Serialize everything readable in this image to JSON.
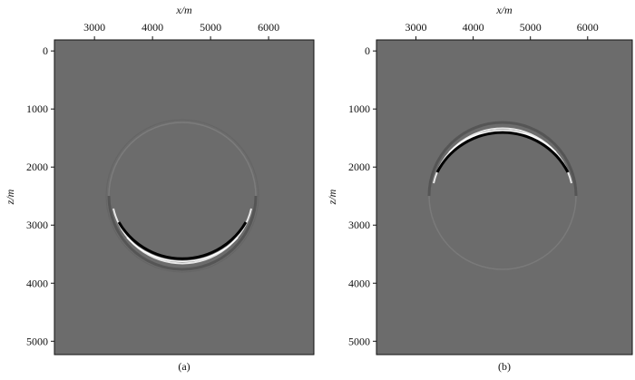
{
  "chart_data": [
    {
      "type": "image",
      "xlabel": "x/m",
      "ylabel": "z/m",
      "caption": "(a)",
      "xlim": [
        2310,
        6780
      ],
      "ylim": [
        5230,
        -190
      ],
      "xticks": [
        3000,
        4000,
        5000,
        6000
      ],
      "yticks": [
        0,
        1000,
        2000,
        3000,
        4000,
        5000
      ]
    },
    {
      "type": "image",
      "xlabel": "x/m",
      "ylabel": "z/m",
      "caption": "(b)",
      "xlim": [
        2310,
        6780
      ],
      "ylim": [
        5230,
        -190
      ],
      "xticks": [
        3000,
        4000,
        5000,
        6000
      ],
      "yticks": [
        0,
        1000,
        2000,
        3000,
        4000,
        5000
      ]
    }
  ]
}
